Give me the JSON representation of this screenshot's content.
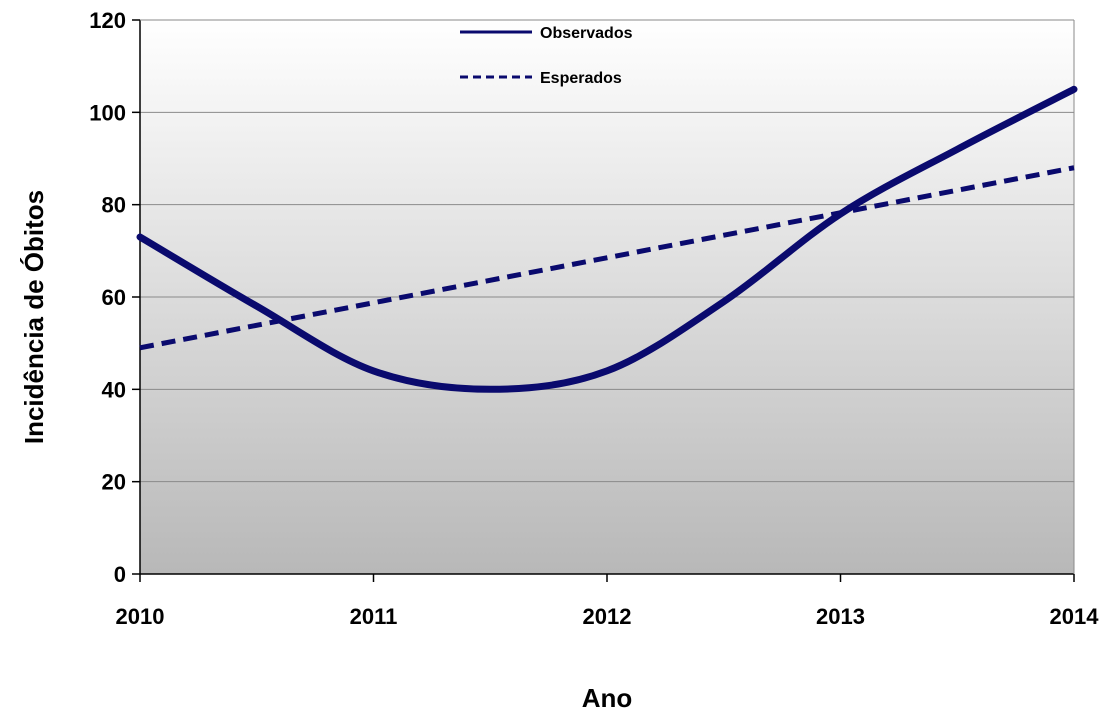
{
  "chart_data": {
    "type": "line",
    "title": "",
    "xlabel": "Ano",
    "ylabel": "Incidência de Óbitos",
    "xlim": [
      2010,
      2014
    ],
    "ylim": [
      0,
      120
    ],
    "x_ticks": [
      2010,
      2011,
      2012,
      2013,
      2014
    ],
    "y_ticks": [
      0,
      20,
      40,
      60,
      80,
      100,
      120
    ],
    "grid": true,
    "legend": "top-center",
    "background_gradient": [
      "#ffffff",
      "#b8b8b8"
    ],
    "series": [
      {
        "name": "Observados",
        "style": "solid",
        "color": "#0a0a6e",
        "x": [
          2010,
          2010.5,
          2011,
          2011.5,
          2012,
          2012.5,
          2013,
          2013.5,
          2014
        ],
        "y": [
          73,
          58,
          44,
          40,
          44,
          59,
          78,
          92,
          105
        ]
      },
      {
        "name": "Esperados",
        "style": "dashed",
        "color": "#0a0a6e",
        "x": [
          2010,
          2014
        ],
        "y": [
          49,
          88
        ]
      }
    ]
  }
}
